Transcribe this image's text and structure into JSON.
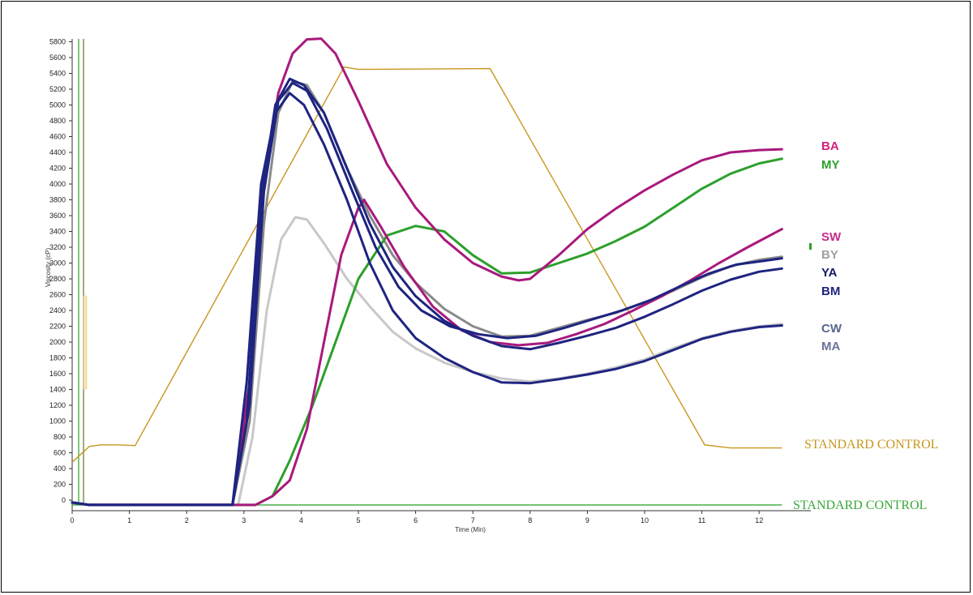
{
  "chart_data": {
    "type": "line",
    "title": "",
    "xlabel": "Time (Min)",
    "ylabel": "Viscosity (cP)",
    "xlim": [
      0,
      12.4
    ],
    "ylim": [
      0,
      5800
    ],
    "x_ticks": [
      0,
      1,
      2,
      3,
      4,
      5,
      6,
      7,
      8,
      9,
      10,
      11,
      12
    ],
    "y_ticks": [
      0,
      200,
      400,
      600,
      800,
      1000,
      1200,
      1400,
      1600,
      1800,
      2000,
      2200,
      2400,
      2600,
      2800,
      3000,
      3200,
      3400,
      3600,
      3800,
      4000,
      4200,
      4400,
      4600,
      4800,
      5000,
      5200,
      5400,
      5600,
      5800
    ],
    "grid": false,
    "temperature_profile": {
      "name": "STANDARD CONTROL",
      "color": "#c8961e",
      "points": [
        [
          0,
          480
        ],
        [
          0.3,
          680
        ],
        [
          0.5,
          700
        ],
        [
          0.8,
          700
        ],
        [
          1.1,
          690
        ],
        [
          4.75,
          5480
        ],
        [
          5.0,
          5450
        ],
        [
          7.3,
          5460
        ],
        [
          11.05,
          700
        ],
        [
          11.5,
          660
        ],
        [
          12.4,
          660
        ]
      ]
    },
    "baseline": {
      "name": "STANDARD CONTROL",
      "color": "#3aa83a",
      "points": [
        [
          0,
          -60
        ],
        [
          12.4,
          -60
        ]
      ]
    },
    "series": [
      {
        "name": "BA",
        "color": "#a8197c",
        "label_color": "#d4207a",
        "points": [
          [
            0,
            -30
          ],
          [
            0.3,
            -60
          ],
          [
            2.8,
            -60
          ],
          [
            3.1,
            1500
          ],
          [
            3.35,
            4000
          ],
          [
            3.6,
            5150
          ],
          [
            3.85,
            5650
          ],
          [
            4.1,
            5830
          ],
          [
            4.35,
            5840
          ],
          [
            4.6,
            5650
          ],
          [
            5.0,
            5050
          ],
          [
            5.5,
            4250
          ],
          [
            6.0,
            3700
          ],
          [
            6.5,
            3300
          ],
          [
            7.0,
            3000
          ],
          [
            7.5,
            2830
          ],
          [
            7.8,
            2780
          ],
          [
            8.0,
            2800
          ],
          [
            8.5,
            3100
          ],
          [
            9.0,
            3430
          ],
          [
            9.5,
            3690
          ],
          [
            10.0,
            3920
          ],
          [
            10.5,
            4120
          ],
          [
            11.0,
            4300
          ],
          [
            11.5,
            4400
          ],
          [
            12.0,
            4430
          ],
          [
            12.4,
            4440
          ]
        ]
      },
      {
        "name": "MY",
        "color": "#2ca02c",
        "label_color": "#2ca02c",
        "points": [
          [
            0,
            -30
          ],
          [
            0.3,
            -60
          ],
          [
            3.2,
            -60
          ],
          [
            3.5,
            50
          ],
          [
            3.8,
            500
          ],
          [
            4.2,
            1200
          ],
          [
            4.6,
            2000
          ],
          [
            5.0,
            2800
          ],
          [
            5.5,
            3350
          ],
          [
            6.0,
            3470
          ],
          [
            6.5,
            3400
          ],
          [
            7.0,
            3100
          ],
          [
            7.5,
            2870
          ],
          [
            8.0,
            2880
          ],
          [
            8.5,
            3000
          ],
          [
            9.0,
            3120
          ],
          [
            9.5,
            3280
          ],
          [
            10.0,
            3460
          ],
          [
            10.5,
            3700
          ],
          [
            11.0,
            3940
          ],
          [
            11.5,
            4130
          ],
          [
            12.0,
            4260
          ],
          [
            12.4,
            4320
          ]
        ]
      },
      {
        "name": "SW",
        "color": "#a8197c",
        "label_color": "#c42b8c",
        "points": [
          [
            0,
            -30
          ],
          [
            0.3,
            -60
          ],
          [
            3.2,
            -60
          ],
          [
            3.5,
            50
          ],
          [
            3.8,
            250
          ],
          [
            4.1,
            900
          ],
          [
            4.4,
            2000
          ],
          [
            4.7,
            3100
          ],
          [
            5.0,
            3700
          ],
          [
            5.1,
            3800
          ],
          [
            5.4,
            3450
          ],
          [
            5.8,
            2950
          ],
          [
            6.3,
            2450
          ],
          [
            6.8,
            2150
          ],
          [
            7.3,
            2000
          ],
          [
            7.8,
            1960
          ],
          [
            8.3,
            1990
          ],
          [
            8.8,
            2100
          ],
          [
            9.3,
            2230
          ],
          [
            9.8,
            2400
          ],
          [
            10.3,
            2580
          ],
          [
            10.8,
            2780
          ],
          [
            11.3,
            3000
          ],
          [
            11.8,
            3200
          ],
          [
            12.4,
            3430
          ]
        ]
      },
      {
        "name": "BY",
        "color": "#8a8a8a",
        "label_color": "#a0a0a0",
        "points": [
          [
            0,
            -30
          ],
          [
            0.3,
            -60
          ],
          [
            2.8,
            -60
          ],
          [
            3.1,
            1000
          ],
          [
            3.35,
            3500
          ],
          [
            3.6,
            4900
          ],
          [
            3.85,
            5300
          ],
          [
            4.1,
            5250
          ],
          [
            4.4,
            4900
          ],
          [
            4.8,
            4200
          ],
          [
            5.2,
            3600
          ],
          [
            5.6,
            3100
          ],
          [
            6.0,
            2750
          ],
          [
            6.5,
            2420
          ],
          [
            7.0,
            2200
          ],
          [
            7.5,
            2070
          ],
          [
            8.0,
            2080
          ],
          [
            8.5,
            2180
          ],
          [
            9.0,
            2280
          ],
          [
            9.5,
            2370
          ],
          [
            10.0,
            2500
          ],
          [
            10.5,
            2650
          ],
          [
            11.0,
            2820
          ],
          [
            11.5,
            2960
          ],
          [
            12.0,
            3040
          ],
          [
            12.4,
            3080
          ]
        ]
      },
      {
        "name": "YA",
        "color": "#1e2480",
        "label_color": "#141a6a",
        "points": [
          [
            0,
            -30
          ],
          [
            0.3,
            -60
          ],
          [
            2.8,
            -60
          ],
          [
            3.05,
            1000
          ],
          [
            3.3,
            3800
          ],
          [
            3.55,
            5000
          ],
          [
            3.8,
            5330
          ],
          [
            4.05,
            5250
          ],
          [
            4.4,
            4900
          ],
          [
            4.8,
            4200
          ],
          [
            5.2,
            3500
          ],
          [
            5.6,
            2950
          ],
          [
            6.0,
            2580
          ],
          [
            6.5,
            2270
          ],
          [
            7.0,
            2080
          ],
          [
            7.5,
            1950
          ],
          [
            8.0,
            1910
          ],
          [
            8.5,
            1990
          ],
          [
            9.0,
            2080
          ],
          [
            9.5,
            2180
          ],
          [
            10.0,
            2320
          ],
          [
            10.5,
            2480
          ],
          [
            11.0,
            2650
          ],
          [
            11.5,
            2790
          ],
          [
            12.0,
            2890
          ],
          [
            12.4,
            2930
          ]
        ]
      },
      {
        "name": "BM",
        "color": "#1e2480",
        "label_color": "#1e2480",
        "points": [
          [
            0,
            -30
          ],
          [
            0.3,
            -60
          ],
          [
            2.8,
            -60
          ],
          [
            3.1,
            1200
          ],
          [
            3.35,
            3900
          ],
          [
            3.6,
            5050
          ],
          [
            3.85,
            5280
          ],
          [
            4.1,
            5180
          ],
          [
            4.45,
            4700
          ],
          [
            4.9,
            3900
          ],
          [
            5.3,
            3200
          ],
          [
            5.7,
            2700
          ],
          [
            6.1,
            2400
          ],
          [
            6.6,
            2200
          ],
          [
            7.1,
            2100
          ],
          [
            7.6,
            2050
          ],
          [
            8.1,
            2080
          ],
          [
            8.6,
            2180
          ],
          [
            9.1,
            2290
          ],
          [
            9.6,
            2400
          ],
          [
            10.1,
            2530
          ],
          [
            10.6,
            2700
          ],
          [
            11.1,
            2860
          ],
          [
            11.6,
            2980
          ],
          [
            12.1,
            3030
          ],
          [
            12.4,
            3060
          ]
        ]
      },
      {
        "name": "CW",
        "color": "#1e2480",
        "label_color": "#5a6590",
        "points": [
          [
            0,
            -30
          ],
          [
            0.3,
            -60
          ],
          [
            2.8,
            -60
          ],
          [
            3.05,
            1500
          ],
          [
            3.3,
            4000
          ],
          [
            3.55,
            4900
          ],
          [
            3.8,
            5150
          ],
          [
            4.05,
            5000
          ],
          [
            4.4,
            4500
          ],
          [
            4.8,
            3800
          ],
          [
            5.2,
            3000
          ],
          [
            5.6,
            2400
          ],
          [
            6.0,
            2050
          ],
          [
            6.5,
            1800
          ],
          [
            7.0,
            1620
          ],
          [
            7.5,
            1490
          ],
          [
            8.0,
            1480
          ],
          [
            8.5,
            1530
          ],
          [
            9.0,
            1590
          ],
          [
            9.5,
            1660
          ],
          [
            10.0,
            1760
          ],
          [
            10.5,
            1900
          ],
          [
            11.0,
            2040
          ],
          [
            11.5,
            2130
          ],
          [
            12.0,
            2190
          ],
          [
            12.4,
            2210
          ]
        ]
      },
      {
        "name": "MA",
        "color": "#c8c8c8",
        "label_color": "#6a7298",
        "points": [
          [
            0,
            -30
          ],
          [
            0.3,
            -60
          ],
          [
            2.9,
            -60
          ],
          [
            3.15,
            800
          ],
          [
            3.4,
            2400
          ],
          [
            3.65,
            3300
          ],
          [
            3.9,
            3580
          ],
          [
            4.1,
            3550
          ],
          [
            4.4,
            3250
          ],
          [
            4.8,
            2800
          ],
          [
            5.2,
            2450
          ],
          [
            5.6,
            2130
          ],
          [
            6.0,
            1920
          ],
          [
            6.5,
            1740
          ],
          [
            7.0,
            1620
          ],
          [
            7.5,
            1540
          ],
          [
            8.0,
            1500
          ],
          [
            8.5,
            1540
          ],
          [
            9.0,
            1600
          ],
          [
            9.5,
            1680
          ],
          [
            10.0,
            1780
          ],
          [
            10.5,
            1920
          ],
          [
            11.0,
            2050
          ],
          [
            11.5,
            2140
          ],
          [
            12.0,
            2200
          ],
          [
            12.4,
            2230
          ]
        ]
      }
    ],
    "labels": {
      "BA": "BA",
      "MY": "MY",
      "SW": "SW",
      "BY": "BY",
      "YA": "YA",
      "BM": "BM",
      "CW": "CW",
      "MA": "MA",
      "standard_temp": "STANDARD CONTROL",
      "standard_base": "STANDARD CONTROL"
    }
  }
}
